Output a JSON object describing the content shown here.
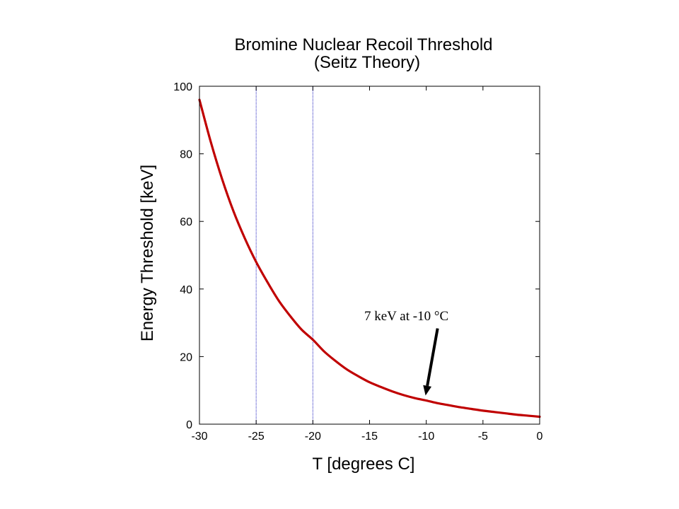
{
  "chart_data": {
    "type": "line",
    "title": "Bromine Nuclear Recoil Threshold",
    "subtitle": "(Seitz Theory)",
    "xlabel": "T [degrees C]",
    "ylabel": "Energy Threshold [keV]",
    "xlim": [
      -30,
      0
    ],
    "ylim": [
      0,
      100
    ],
    "xticks": [
      -30,
      -25,
      -20,
      -15,
      -10,
      -5,
      0
    ],
    "yticks": [
      0,
      20,
      40,
      60,
      80,
      100
    ],
    "grid": false,
    "vlines": [
      -25,
      -20
    ],
    "series": [
      {
        "color": "#c00000",
        "x": [
          -30,
          -29,
          -28,
          -27,
          -26,
          -25,
          -24,
          -23,
          -22,
          -21,
          -20,
          -19,
          -18,
          -17,
          -16,
          -15,
          -14,
          -13,
          -12,
          -11,
          -10,
          -9,
          -8,
          -7,
          -6,
          -5,
          -4,
          -3,
          -2,
          -1,
          0
        ],
        "y": [
          96,
          83.5,
          72.5,
          63,
          55,
          48,
          42,
          36.5,
          32,
          28,
          25,
          21.5,
          18.7,
          16.2,
          14.2,
          12.4,
          11,
          9.7,
          8.6,
          7.7,
          7,
          6.2,
          5.6,
          5,
          4.5,
          4,
          3.6,
          3.2,
          2.8,
          2.5,
          2.2
        ]
      }
    ],
    "annotation": {
      "text": "7 keV at -10 °C",
      "x": -10,
      "y": 7
    }
  }
}
